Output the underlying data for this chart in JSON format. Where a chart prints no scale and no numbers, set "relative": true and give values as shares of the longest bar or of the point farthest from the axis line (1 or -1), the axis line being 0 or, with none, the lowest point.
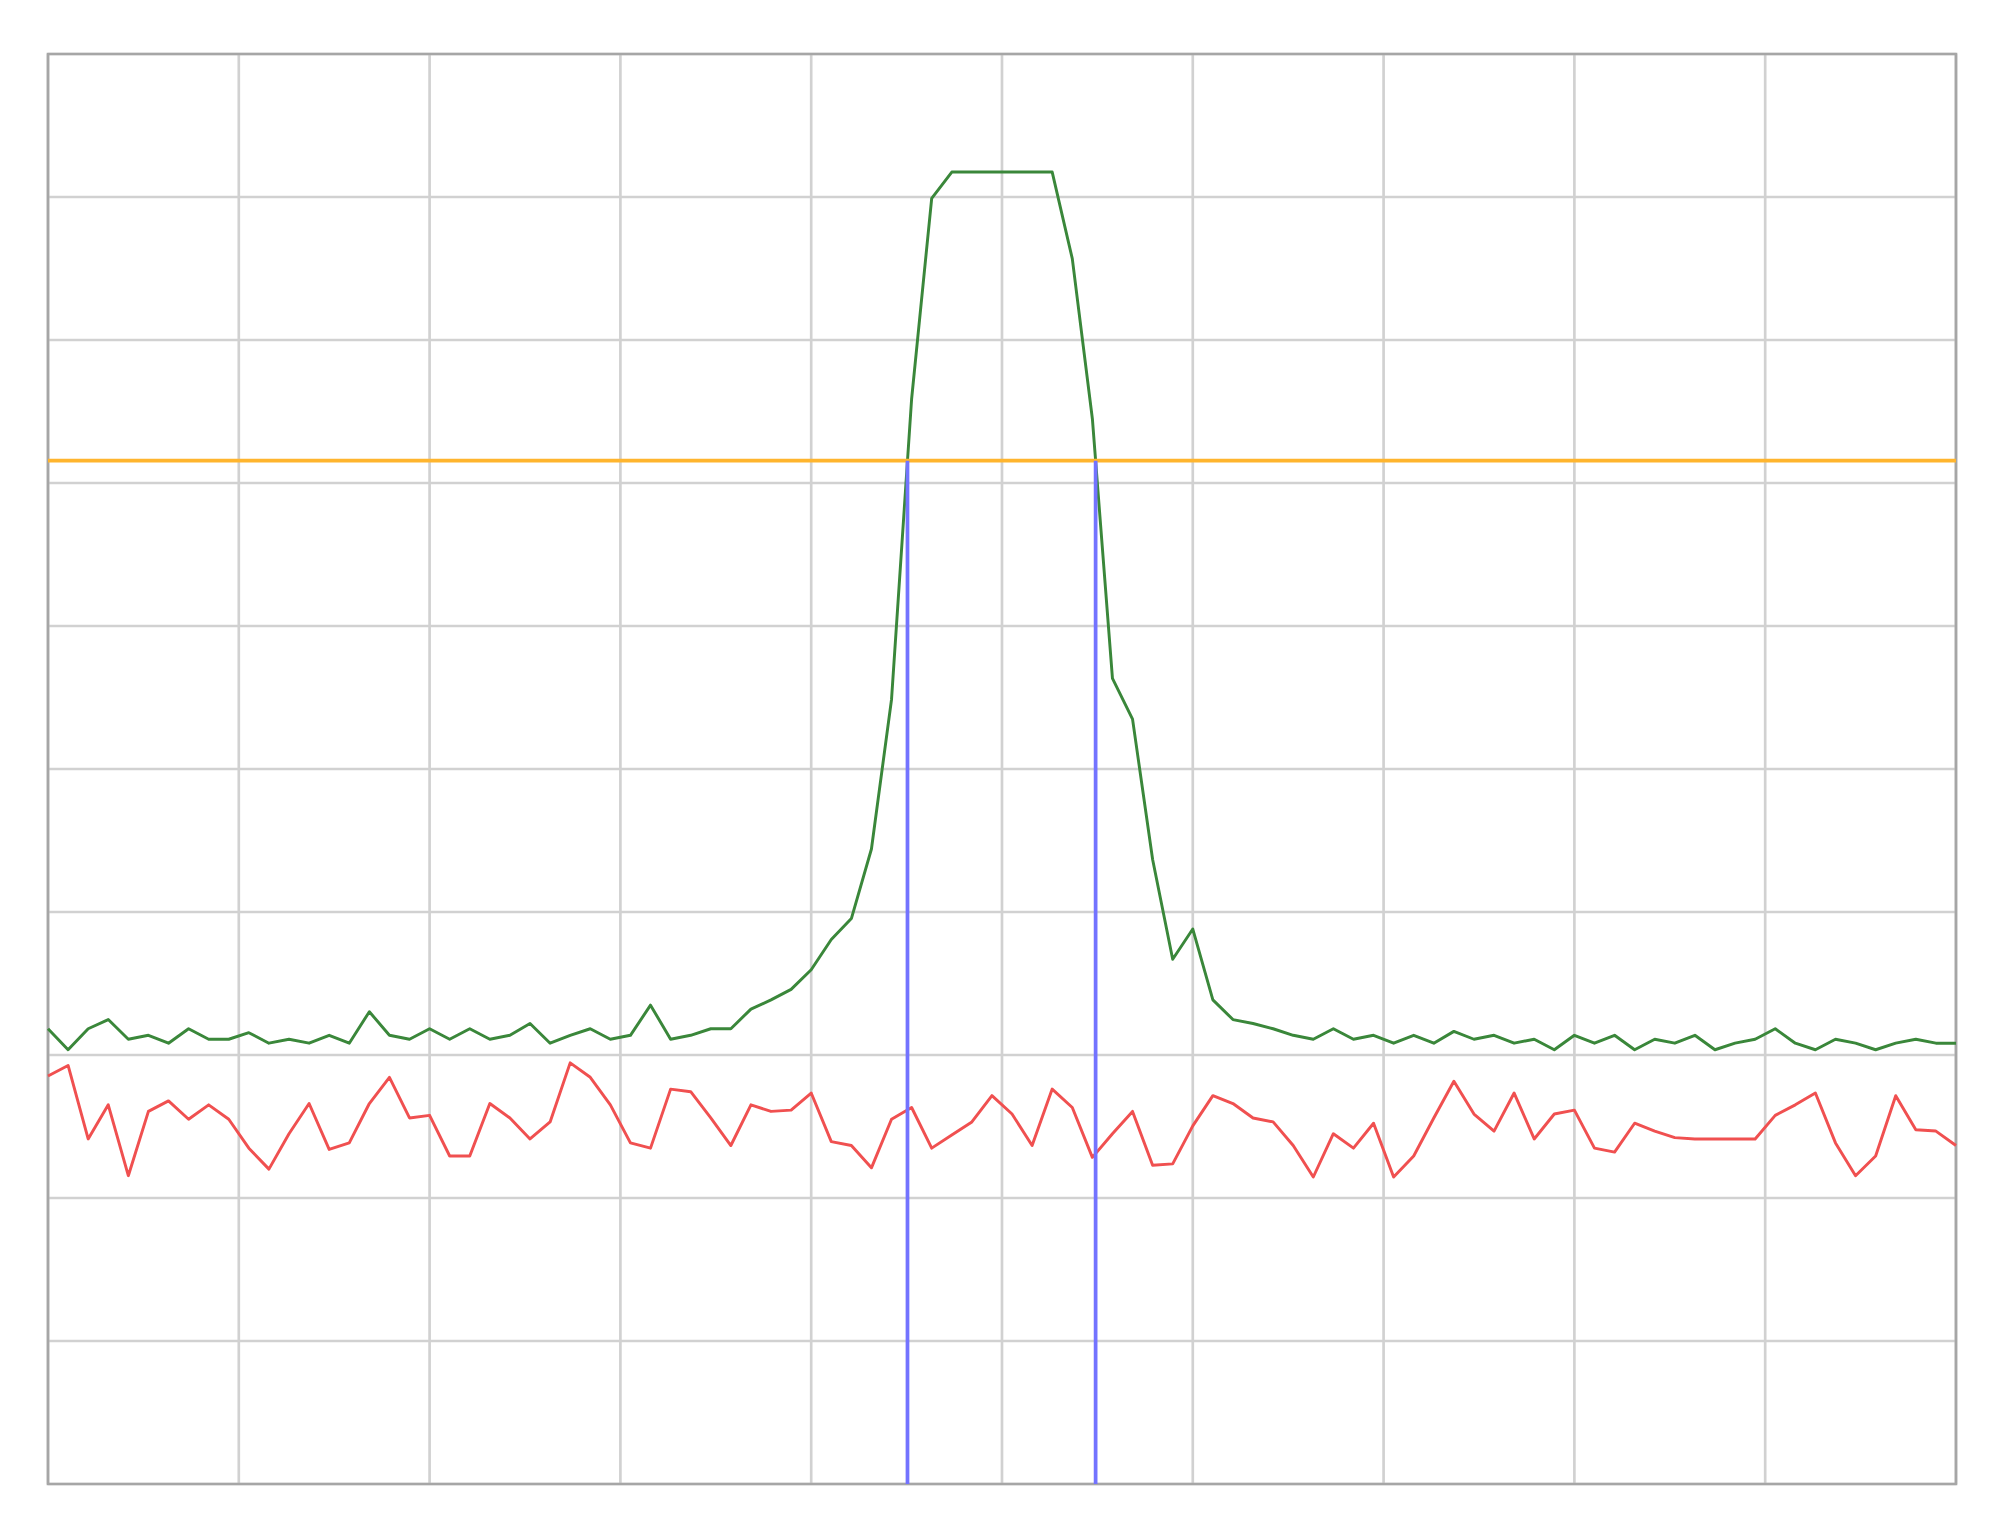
{
  "chart_data": {
    "type": "line",
    "relative": true,
    "grid": true,
    "legend": false,
    "marker": "none",
    "line_style": "solid",
    "categories": [
      null,
      null,
      null,
      null,
      null,
      null,
      null,
      null,
      null,
      null,
      null,
      null,
      null,
      null,
      null,
      null,
      null,
      null,
      null,
      null,
      null,
      null,
      null,
      null,
      null,
      null,
      null,
      null,
      null,
      null,
      null,
      null,
      null,
      null,
      null,
      null,
      null,
      null,
      null,
      null,
      null,
      null,
      null,
      null,
      null,
      null,
      null,
      null,
      null,
      null,
      null,
      null,
      null,
      null,
      null,
      null,
      null,
      null,
      null,
      null,
      null,
      null,
      null,
      null,
      null,
      null,
      null,
      null,
      null,
      null,
      null,
      null,
      null,
      null,
      null,
      null,
      null,
      null,
      null,
      null,
      null,
      null,
      null,
      null,
      null,
      null,
      null,
      null,
      null,
      null,
      null,
      null,
      null,
      null,
      null,
      null
    ],
    "series": [
      {
        "color": "#3a873a",
        "values": [
          0.347,
          0.331,
          0.347,
          0.354,
          0.339,
          0.342,
          0.336,
          0.347,
          0.339,
          0.339,
          0.344,
          0.336,
          0.339,
          0.336,
          0.342,
          0.336,
          0.36,
          0.342,
          0.339,
          0.347,
          0.339,
          0.347,
          0.339,
          0.342,
          0.351,
          0.336,
          0.342,
          0.347,
          0.339,
          0.342,
          0.365,
          0.339,
          0.342,
          0.347,
          0.347,
          0.362,
          0.369,
          0.377,
          0.392,
          0.415,
          0.431,
          0.484,
          0.598,
          0.827,
          0.98,
          1,
          1,
          1,
          1,
          1,
          1,
          0.934,
          0.812,
          0.614,
          0.583,
          0.476,
          0.4,
          0.423,
          0.369,
          0.354,
          0.351,
          0.347,
          0.342,
          0.339,
          0.347,
          0.339,
          0.342,
          0.336,
          0.342,
          0.336,
          0.345,
          0.339,
          0.342,
          0.336,
          0.339,
          0.331,
          0.342,
          0.336,
          0.342,
          0.331,
          0.339,
          0.336,
          0.342,
          0.331,
          0.336,
          0.339,
          0.347,
          0.336,
          0.331,
          0.339,
          0.336,
          0.331,
          0.336,
          0.339,
          0.336,
          0.336
        ]
      },
      {
        "color": "#f05050",
        "values": [
          0.311,
          0.319,
          0.263,
          0.289,
          0.235,
          0.284,
          0.292,
          0.278,
          0.289,
          0.278,
          0.256,
          0.24,
          0.267,
          0.29,
          0.255,
          0.26,
          0.29,
          0.31,
          0.279,
          0.281,
          0.25,
          0.25,
          0.29,
          0.279,
          0.263,
          0.276,
          0.321,
          0.31,
          0.289,
          0.26,
          0.256,
          0.301,
          0.299,
          0.279,
          0.258,
          0.289,
          0.284,
          0.285,
          0.298,
          0.261,
          0.258,
          0.241,
          0.278,
          0.287,
          0.256,
          0.266,
          0.276,
          0.296,
          0.282,
          0.258,
          0.301,
          0.287,
          0.249,
          0.267,
          0.284,
          0.243,
          0.244,
          0.273,
          0.296,
          0.29,
          0.279,
          0.276,
          0.258,
          0.234,
          0.267,
          0.256,
          0.275,
          0.234,
          0.25,
          0.279,
          0.307,
          0.282,
          0.269,
          0.298,
          0.263,
          0.282,
          0.285,
          0.256,
          0.253,
          0.275,
          0.269,
          0.264,
          0.263,
          0.263,
          0.263,
          0.263,
          0.281,
          0.289,
          0.298,
          0.26,
          0.235,
          0.25,
          0.296,
          0.27,
          0.269,
          0.258
        ]
      }
    ],
    "ref_lines": [
      {
        "axis": "y",
        "value": 0.78,
        "color": "#ffb52e"
      }
    ]
  }
}
